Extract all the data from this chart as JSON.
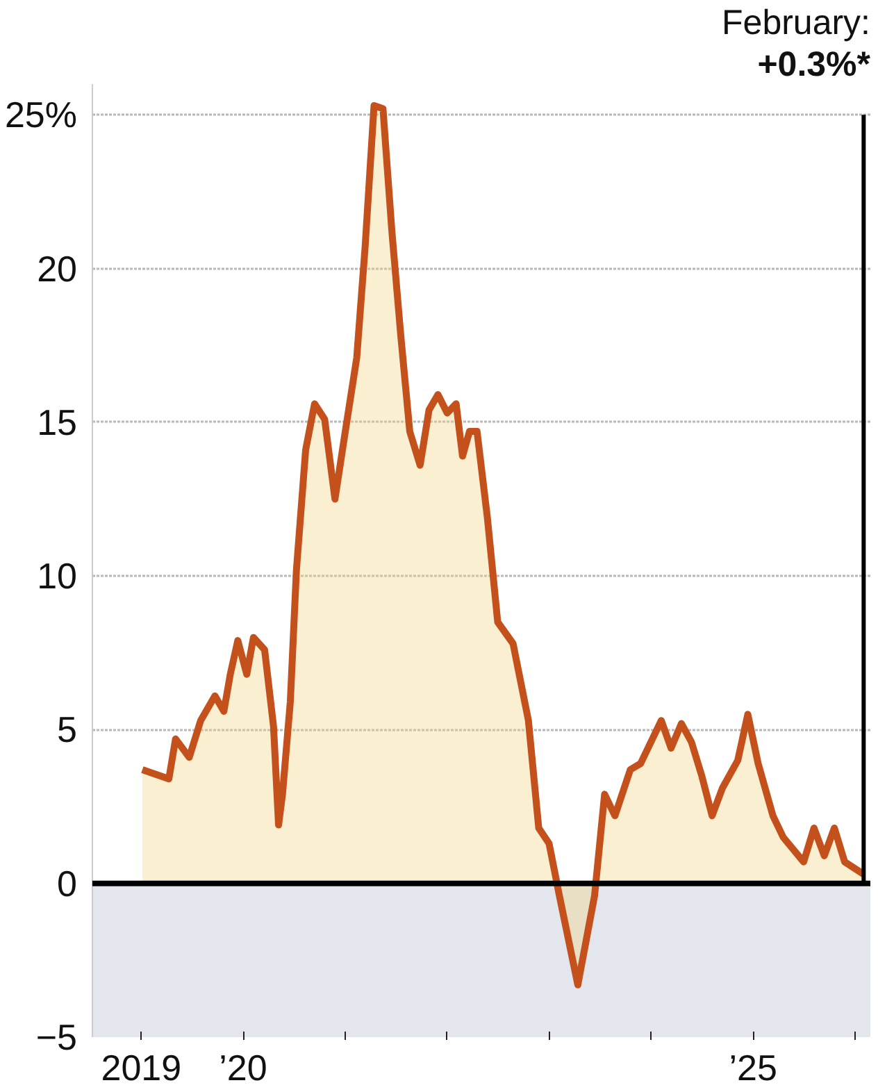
{
  "chart_data": {
    "type": "area",
    "x": [
      "2019-01-05",
      "2019-04-10",
      "2019-05-04",
      "2019-06-22",
      "2019-08-02",
      "2019-09-22",
      "2019-10-24",
      "2019-11-16",
      "2019-12-13",
      "2020-01-14",
      "2020-02-07",
      "2020-03-18",
      "2020-04-19",
      "2020-05-07",
      "2020-05-21",
      "2020-06-18",
      "2020-07-10",
      "2020-08-12",
      "2020-09-13",
      "2020-10-19",
      "2020-11-25",
      "2021-01-01",
      "2021-02-11",
      "2021-03-13",
      "2021-04-14",
      "2021-05-16",
      "2021-06-17",
      "2021-07-19",
      "2021-08-20",
      "2021-09-26",
      "2021-10-28",
      "2021-11-29",
      "2022-01-01",
      "2022-02-02",
      "2022-02-25",
      "2022-03-22",
      "2022-04-18",
      "2022-05-25",
      "2022-07-01",
      "2022-08-25",
      "2022-10-19",
      "2022-11-25",
      "2023-01-01",
      "2023-02-07",
      "2023-04-14",
      "2023-06-13",
      "2023-07-19",
      "2023-08-25",
      "2023-10-19",
      "2023-11-25",
      "2024-02-07",
      "2024-03-13",
      "2024-04-19",
      "2024-05-25",
      "2024-07-01",
      "2024-08-07",
      "2024-09-13",
      "2024-11-07",
      "2024-12-13",
      "2025-01-19",
      "2025-03-13",
      "2025-04-19",
      "2025-07-01",
      "2025-08-07",
      "2025-09-13",
      "2025-10-19",
      "2025-11-25",
      "2026-02-01"
    ],
    "series": [
      {
        "color": "#c4501c",
        "values": [
          3.7,
          3.4,
          4.7,
          4.1,
          5.3,
          6.1,
          5.6,
          6.8,
          7.9,
          6.8,
          8.0,
          7.6,
          5.1,
          1.9,
          2.9,
          5.9,
          10.2,
          14.1,
          15.6,
          15.1,
          12.5,
          14.7,
          17.1,
          20.7,
          25.3,
          25.2,
          21.2,
          17.8,
          14.7,
          13.6,
          15.4,
          15.9,
          15.3,
          15.6,
          13.9,
          14.7,
          14.7,
          11.9,
          8.5,
          7.8,
          5.3,
          1.8,
          1.3,
          -0.4,
          -3.3,
          -0.4,
          2.9,
          2.2,
          3.7,
          3.9,
          5.3,
          4.4,
          5.2,
          4.6,
          3.5,
          2.2,
          3.1,
          4.0,
          5.5,
          3.9,
          2.2,
          1.5,
          0.7,
          1.8,
          0.9,
          1.8,
          0.7,
          0.3
        ]
      }
    ],
    "xlim": [
      "2018-07-10",
      "2026-02-25"
    ],
    "xticks": [
      {
        "value": "2019-01-01",
        "label": "2019"
      },
      {
        "value": "2020-01-01",
        "label": "’20"
      },
      {
        "value": "2021-01-01",
        "label": null
      },
      {
        "value": "2022-01-01",
        "label": null
      },
      {
        "value": "2023-01-01",
        "label": null
      },
      {
        "value": "2024-01-01",
        "label": null
      },
      {
        "value": "2025-01-01",
        "label": "’25"
      },
      {
        "value": "2026-01-01",
        "label": null
      }
    ],
    "ylim": [
      -5,
      26
    ],
    "yticks": [
      {
        "value": -5,
        "label": "−5"
      },
      0,
      5,
      10,
      15,
      20,
      {
        "value": 25,
        "label": "25%"
      }
    ],
    "grid": "y",
    "line_style": "solid",
    "ref_lines": [
      {
        "axis": "y",
        "value": 0,
        "color": "#000000"
      },
      {
        "axis": "x",
        "value": "2026-02-01",
        "color": "#000000"
      }
    ],
    "bands": [
      {
        "axis": "y",
        "from": -5,
        "to": 0,
        "color": "#e3e6ec"
      }
    ],
    "annotations": [
      "February:",
      "+0.3%*"
    ]
  }
}
